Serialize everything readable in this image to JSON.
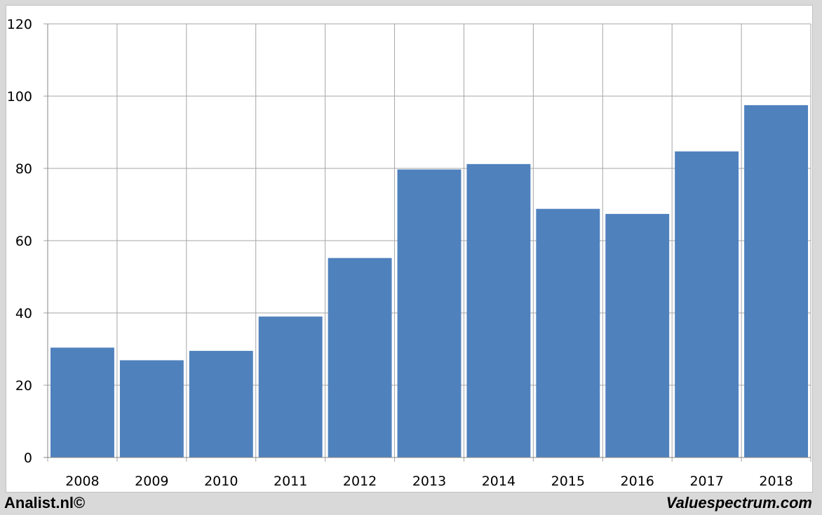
{
  "chart_data": {
    "type": "bar",
    "categories": [
      "2008",
      "2009",
      "2010",
      "2011",
      "2012",
      "2013",
      "2014",
      "2015",
      "2016",
      "2017",
      "2018"
    ],
    "values": [
      30.4,
      26.9,
      29.5,
      39.0,
      55.2,
      79.7,
      81.2,
      68.8,
      67.4,
      84.7,
      97.5
    ],
    "ylim": [
      0,
      120
    ],
    "yticks": [
      0,
      20,
      40,
      60,
      80,
      100,
      120
    ],
    "grid": true,
    "bar_color": "#4f81bd",
    "title": "",
    "xlabel": "",
    "ylabel": ""
  },
  "footer": {
    "left": "Analist.nl©",
    "right": "Valuespectrum.com"
  }
}
